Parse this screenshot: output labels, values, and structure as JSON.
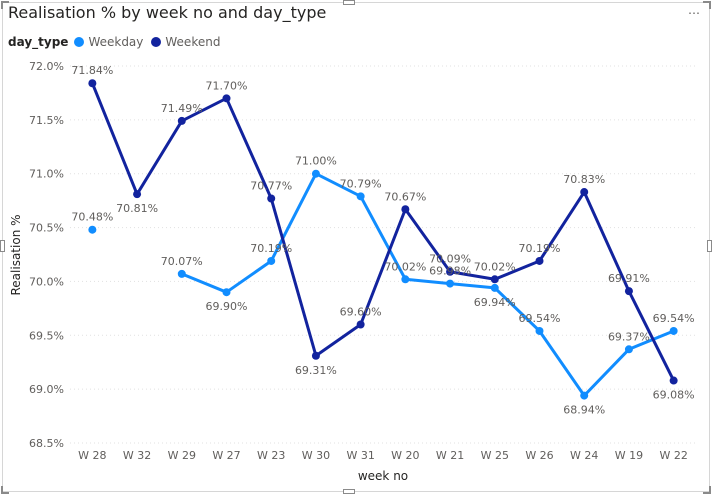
{
  "header": {
    "title": "Realisation % by week no and day_type",
    "more_icon": "…"
  },
  "legend": {
    "title": "day_type",
    "items": [
      {
        "label": "Weekday",
        "color": "#118DFF"
      },
      {
        "label": "Weekend",
        "color": "#12239E"
      }
    ]
  },
  "chart_data": {
    "type": "line",
    "title": "Realisation % by week no and day_type",
    "xlabel": "week no",
    "ylabel": "Realisation %",
    "categories": [
      "W 28",
      "W 32",
      "W 29",
      "W 27",
      "W 23",
      "W 30",
      "W 31",
      "W 20",
      "W 21",
      "W 25",
      "W 26",
      "W 24",
      "W 19",
      "W 22"
    ],
    "ylim": [
      68.5,
      72.0
    ],
    "yticks": [
      "68.5%",
      "69.0%",
      "69.5%",
      "70.0%",
      "70.5%",
      "71.0%",
      "71.5%",
      "72.0%"
    ],
    "grid": true,
    "legend_position": "top-left",
    "series": [
      {
        "name": "Weekday",
        "color": "#118DFF",
        "values": [
          70.48,
          null,
          70.07,
          69.9,
          70.19,
          71.0,
          70.79,
          70.02,
          69.98,
          69.94,
          69.54,
          68.94,
          69.37,
          69.54
        ],
        "labels": [
          "70.48%",
          "",
          "70.07%",
          "69.90%",
          "70.19%",
          "71.00%",
          "70.79%",
          "70.02%",
          "69.98%",
          "69.94%",
          "69.54%",
          "68.94%",
          "69.37%",
          "69.54%"
        ]
      },
      {
        "name": "Weekend",
        "color": "#12239E",
        "values": [
          71.84,
          70.81,
          71.49,
          71.7,
          70.77,
          69.31,
          69.6,
          70.67,
          70.09,
          70.02,
          70.19,
          70.83,
          69.91,
          69.08
        ],
        "labels": [
          "71.84%",
          "70.81%",
          "71.49%",
          "71.70%",
          "70.77%",
          "69.31%",
          "69.60%",
          "70.67%",
          "70.09%",
          "70.02%",
          "70.19%",
          "70.83%",
          "69.91%",
          "69.08%"
        ]
      }
    ]
  }
}
